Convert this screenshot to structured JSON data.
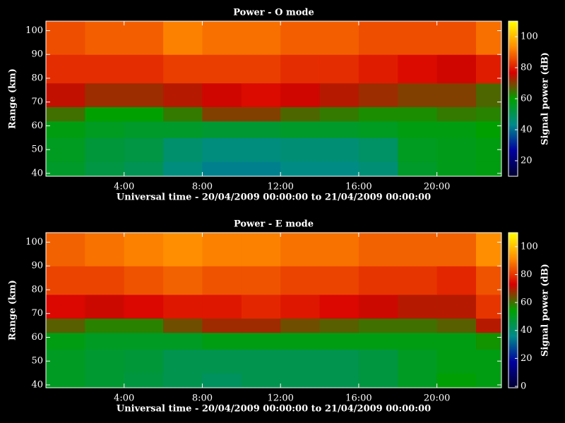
{
  "chart_data": [
    {
      "type": "heatmap",
      "title": "Power - O mode",
      "xlabel": "Universal time - 20/04/2009 00:00:00 to 21/04/2009 00:00:00",
      "ylabel": "Range (km)",
      "colorbar_label": "Signal power (dB)",
      "xlim": [
        0,
        23.3
      ],
      "xticks": [
        {
          "value": 4,
          "label": "4:00"
        },
        {
          "value": 8,
          "label": "8:00"
        },
        {
          "value": 12,
          "label": "12:00"
        },
        {
          "value": 16,
          "label": "16:00"
        },
        {
          "value": 20,
          "label": "20:00"
        }
      ],
      "ylim": [
        38.8,
        104
      ],
      "yticks": [
        40,
        50,
        60,
        70,
        80,
        90,
        100
      ],
      "clim": [
        10,
        110
      ],
      "cticks": [
        20,
        40,
        60,
        80,
        100
      ],
      "colormap": [
        "#000030",
        "#0000a0",
        "#008b8b",
        "#00a000",
        "#d80000",
        "#ff8c00",
        "#ffff00"
      ],
      "x_bins": [
        0,
        2,
        4,
        6,
        8,
        10,
        12,
        14,
        16,
        18,
        20,
        22,
        23.3
      ],
      "y_bins": [
        38.8,
        45,
        55,
        62,
        68,
        78,
        90,
        104
      ],
      "z": [
        [
          55,
          52,
          50,
          45,
          42,
          42,
          44,
          44,
          46,
          55,
          57,
          58
        ],
        [
          56,
          53,
          52,
          47,
          45,
          45,
          46,
          46,
          48,
          56,
          57,
          58
        ],
        [
          58,
          56,
          55,
          55,
          54,
          54,
          55,
          55,
          56,
          58,
          58,
          60
        ],
        [
          65,
          60,
          60,
          64,
          70,
          70,
          66,
          64,
          62,
          62,
          64,
          63
        ],
        [
          75,
          72,
          72,
          74,
          76,
          78,
          76,
          74,
          72,
          70,
          70,
          66
        ],
        [
          82,
          82,
          82,
          84,
          84,
          84,
          82,
          82,
          80,
          78,
          76,
          80
        ],
        [
          86,
          88,
          88,
          92,
          90,
          90,
          88,
          88,
          86,
          86,
          86,
          90
        ]
      ]
    },
    {
      "type": "heatmap",
      "title": "Power - E mode",
      "xlabel": "Universal time - 20/04/2009 00:00:00 to 21/04/2009 00:00:00",
      "ylabel": "Range (km)",
      "colorbar_label": "Signal power (dB)",
      "xlim": [
        0,
        23.3
      ],
      "xticks": [
        {
          "value": 4,
          "label": "4:00"
        },
        {
          "value": 8,
          "label": "8:00"
        },
        {
          "value": 12,
          "label": "12:00"
        },
        {
          "value": 16,
          "label": "16:00"
        },
        {
          "value": 20,
          "label": "20:00"
        }
      ],
      "ylim": [
        38.8,
        104
      ],
      "yticks": [
        40,
        50,
        60,
        70,
        80,
        90,
        100
      ],
      "clim": [
        -1,
        110
      ],
      "cticks": [
        0,
        20,
        40,
        60,
        80,
        100
      ],
      "colormap": [
        "#000030",
        "#0000a0",
        "#008b8b",
        "#00a000",
        "#d80000",
        "#ff8c00",
        "#ffff00"
      ],
      "x_bins": [
        0,
        2,
        4,
        6,
        8,
        10,
        12,
        14,
        16,
        18,
        20,
        22,
        23.3
      ],
      "y_bins": [
        38.8,
        45,
        55,
        62,
        68,
        78,
        90,
        104
      ],
      "z": [
        [
          50,
          48,
          46,
          44,
          42,
          44,
          44,
          44,
          46,
          50,
          54,
          52
        ],
        [
          50,
          48,
          47,
          44,
          44,
          44,
          44,
          44,
          46,
          50,
          52,
          52
        ],
        [
          52,
          50,
          50,
          50,
          52,
          52,
          52,
          52,
          52,
          52,
          52,
          56
        ],
        [
          62,
          58,
          58,
          64,
          68,
          68,
          64,
          62,
          60,
          60,
          62,
          70
        ],
        [
          74,
          72,
          74,
          76,
          76,
          78,
          76,
          74,
          72,
          70,
          70,
          80
        ],
        [
          82,
          82,
          84,
          86,
          84,
          84,
          82,
          82,
          80,
          80,
          78,
          84
        ],
        [
          86,
          88,
          90,
          92,
          90,
          90,
          88,
          88,
          86,
          86,
          86,
          92
        ]
      ]
    }
  ]
}
